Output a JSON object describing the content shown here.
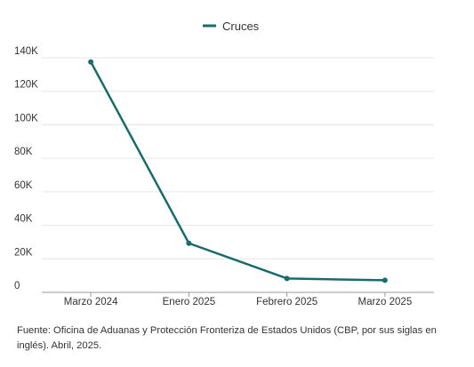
{
  "chart_data": {
    "type": "line",
    "categories": [
      "Marzo 2024",
      "Enero 2025",
      "Febrero 2025",
      "Marzo 2025"
    ],
    "series": [
      {
        "name": "Cruces",
        "values": [
          137500,
          29300,
          8300,
          7200
        ],
        "color": "#1a6b6b"
      }
    ],
    "ylim": [
      0,
      140000
    ],
    "yticks": [
      {
        "value": 0,
        "label": "0"
      },
      {
        "value": 20000,
        "label": "20K"
      },
      {
        "value": 40000,
        "label": "40K"
      },
      {
        "value": 60000,
        "label": "60K"
      },
      {
        "value": 80000,
        "label": "80K"
      },
      {
        "value": 100000,
        "label": "100K"
      },
      {
        "value": 120000,
        "label": "120K"
      },
      {
        "value": 140000,
        "label": "140K"
      }
    ],
    "grid": true,
    "legend_position": "top-center",
    "colors": {
      "grid": "#e6e6e6",
      "axis": "#999999"
    }
  },
  "source_note": "Fuente: Oficina de Aduanas y Protección Fronteriza de Estados Unidos (CBP, por sus siglas en inglés). Abril, 2025."
}
